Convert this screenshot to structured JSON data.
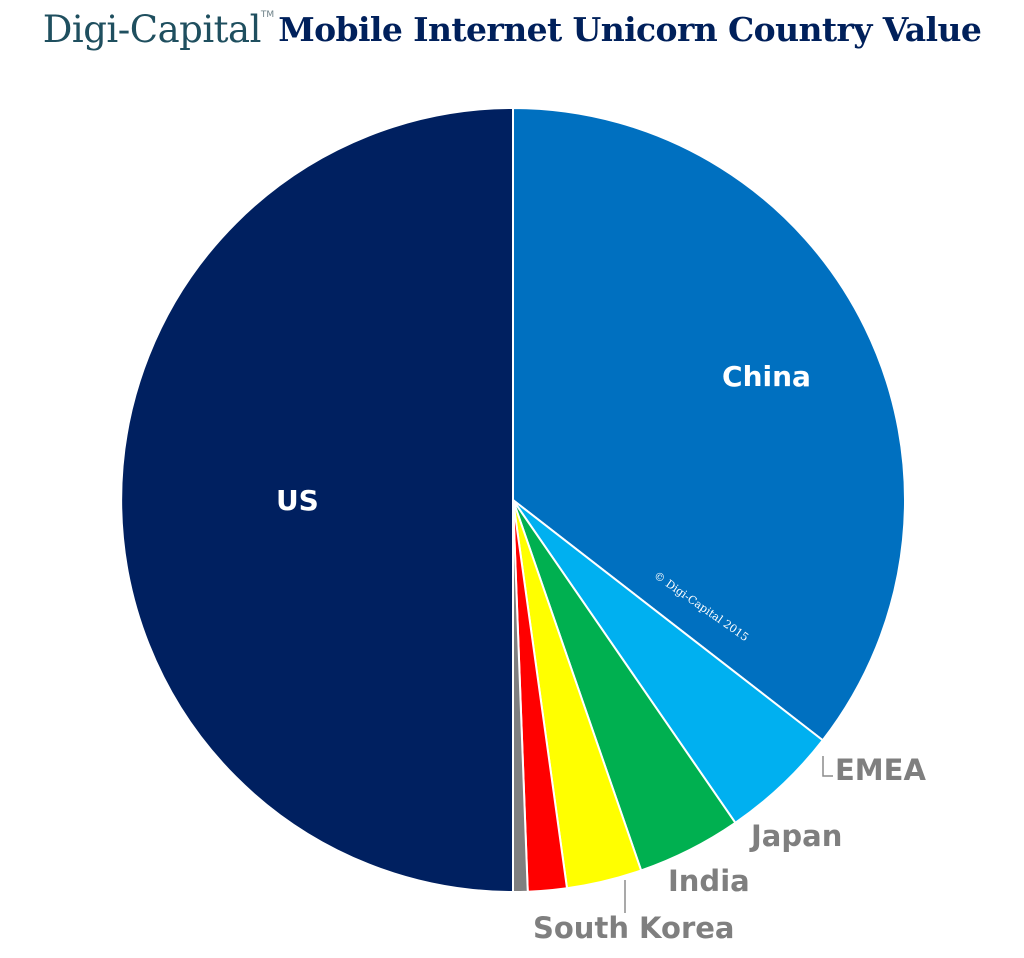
{
  "header": {
    "brand": "Digi-Capital",
    "trademark": "TM",
    "title": "Mobile Internet Unicorn Country Value"
  },
  "watermark": "© Digi-Capital 2015",
  "chart_data": {
    "type": "pie",
    "title": "Mobile Internet Unicorn Country Value",
    "start": "12 o'clock",
    "direction": "clockwise",
    "legend": "none",
    "slices": [
      {
        "label": "China",
        "value": 35.5,
        "color": "#0070c0",
        "label_position": "inside"
      },
      {
        "label": "EMEA",
        "value": 4.9,
        "color": "#00b0f0",
        "label_position": "outside"
      },
      {
        "label": "Japan",
        "value": 4.3,
        "color": "#00b050",
        "label_position": "outside"
      },
      {
        "label": "India",
        "value": 3.1,
        "color": "#ffff00",
        "label_position": "outside"
      },
      {
        "label": "South Korea",
        "value": 1.6,
        "color": "#ff0000",
        "label_position": "outside"
      },
      {
        "label": "",
        "value": 0.6,
        "color": "#7f7f7f",
        "label_position": "none"
      },
      {
        "label": "US",
        "value": 50.0,
        "color": "#002060",
        "label_position": "inside"
      }
    ]
  }
}
